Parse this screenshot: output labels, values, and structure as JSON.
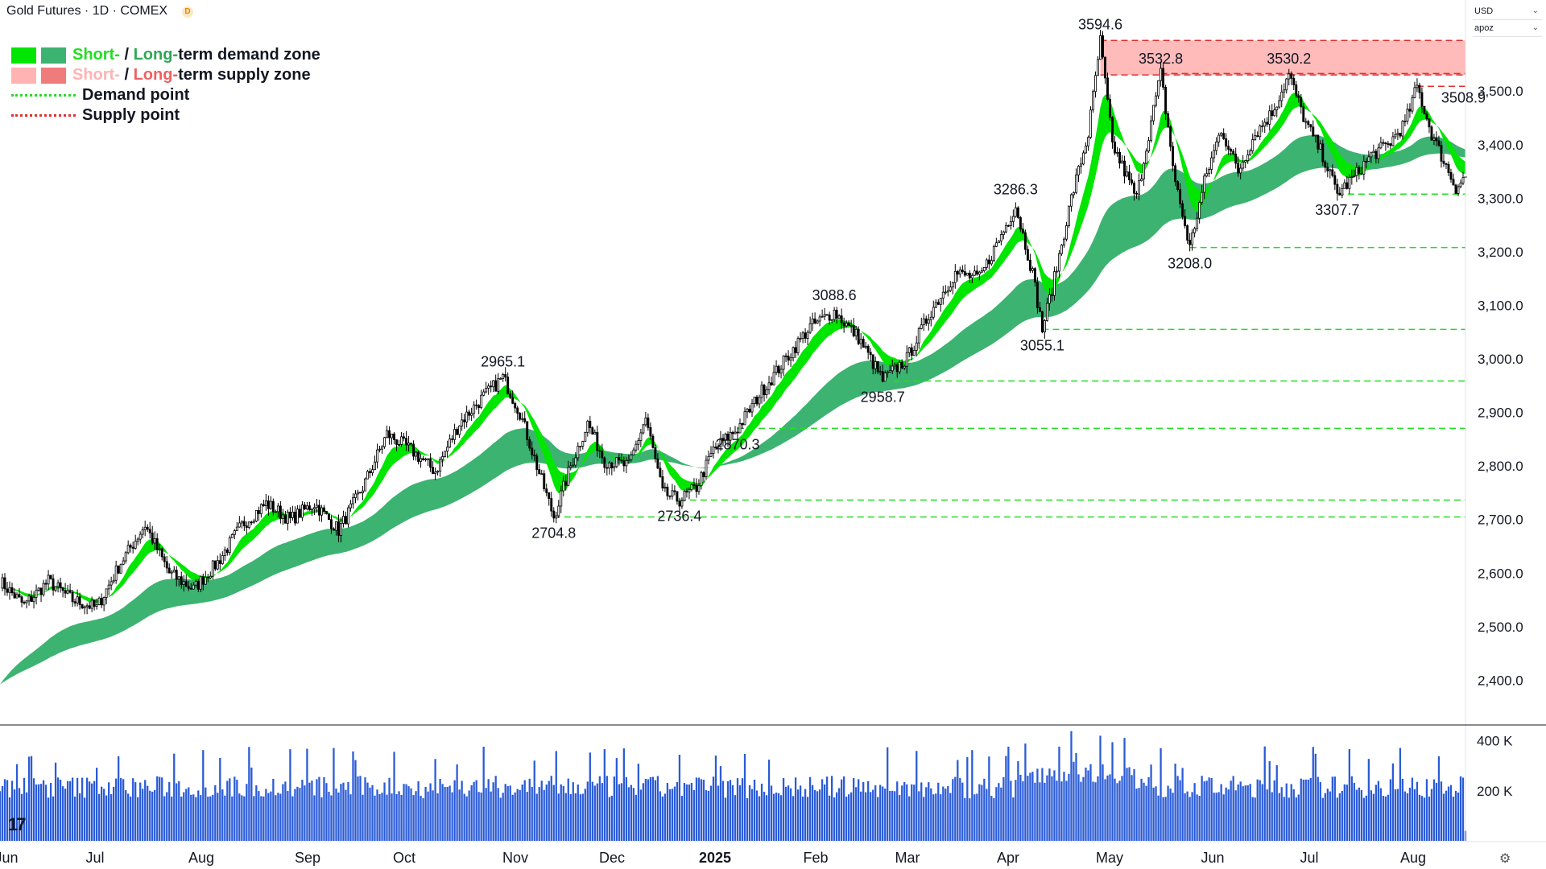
{
  "header": {
    "title": "Gold Futures · 1D · COMEX",
    "badge": "D"
  },
  "scale_panel": {
    "currency": "USD",
    "unit": "apoz"
  },
  "legend": [
    {
      "label_short": "Short-",
      "label_sep": " / ",
      "label_long": "Long-",
      "label_rest": "term demand zone",
      "short_color": "#00e600",
      "long_color": "#3cb371",
      "short_text_color": "#22dd22",
      "long_text_color": "#2ea855"
    },
    {
      "label_short": "Short-",
      "label_sep": " / ",
      "label_long": "Long-",
      "label_rest": "term supply zone",
      "short_color": "#ffb3b3",
      "long_color": "#f07b7b",
      "short_text_color": "#ffb3b3",
      "long_text_color": "#f06060"
    },
    {
      "label": "Demand point",
      "dash_color": "#22dd22"
    },
    {
      "label": "Supply point",
      "dash_color": "#e03030"
    }
  ],
  "chart_data": {
    "type": "candlestick",
    "symbol": "Gold Futures",
    "interval": "1D",
    "exchange": "COMEX",
    "y_axis": {
      "range": [
        2330,
        3610
      ],
      "ticks": [
        "2,400.0",
        "2,500.0",
        "2,600.0",
        "2,700.0",
        "2,800.0",
        "2,900.0",
        "3,000.0",
        "3,100.0",
        "3,200.0",
        "3,300.0",
        "3,400.0",
        "3,500.0"
      ],
      "tick_values": [
        2400,
        2500,
        2600,
        2700,
        2800,
        2900,
        3000,
        3100,
        3200,
        3300,
        3400,
        3500
      ]
    },
    "x_axis": {
      "labels": [
        "Jun",
        "Jul",
        "Aug",
        "Sep",
        "Oct",
        "Nov",
        "Dec",
        "2025",
        "Feb",
        "Mar",
        "Apr",
        "May",
        "Jun",
        "Jul",
        "Aug"
      ],
      "bold": [
        "2025"
      ]
    },
    "price_path": [
      [
        0,
        2585
      ],
      [
        10,
        2540
      ],
      [
        20,
        2585
      ],
      [
        30,
        2550
      ],
      [
        40,
        2535
      ],
      [
        50,
        2620
      ],
      [
        60,
        2690
      ],
      [
        70,
        2600
      ],
      [
        80,
        2570
      ],
      [
        90,
        2620
      ],
      [
        100,
        2690
      ],
      [
        110,
        2730
      ],
      [
        120,
        2700
      ],
      [
        130,
        2730
      ],
      [
        140,
        2680
      ],
      [
        150,
        2760
      ],
      [
        160,
        2860
      ],
      [
        170,
        2830
      ],
      [
        180,
        2790
      ],
      [
        190,
        2880
      ],
      [
        200,
        2930
      ],
      [
        208,
        2965
      ],
      [
        215,
        2900
      ],
      [
        222,
        2800
      ],
      [
        229,
        2705
      ],
      [
        236,
        2800
      ],
      [
        243,
        2880
      ],
      [
        250,
        2810
      ],
      [
        260,
        2800
      ],
      [
        267,
        2890
      ],
      [
        274,
        2750
      ],
      [
        281,
        2736
      ],
      [
        288,
        2760
      ],
      [
        295,
        2830
      ],
      [
        305,
        2870
      ],
      [
        315,
        2940
      ],
      [
        325,
        3000
      ],
      [
        335,
        3060
      ],
      [
        345,
        3088
      ],
      [
        355,
        3040
      ],
      [
        365,
        2960
      ],
      [
        375,
        3000
      ],
      [
        385,
        3090
      ],
      [
        395,
        3160
      ],
      [
        405,
        3150
      ],
      [
        415,
        3240
      ],
      [
        420,
        3286
      ],
      [
        427,
        3160
      ],
      [
        431,
        3055
      ],
      [
        436,
        3150
      ],
      [
        443,
        3300
      ],
      [
        450,
        3420
      ],
      [
        455,
        3594
      ],
      [
        460,
        3400
      ],
      [
        465,
        3350
      ],
      [
        470,
        3300
      ],
      [
        475,
        3420
      ],
      [
        480,
        3533
      ],
      [
        486,
        3330
      ],
      [
        492,
        3208
      ],
      [
        498,
        3330
      ],
      [
        505,
        3430
      ],
      [
        512,
        3350
      ],
      [
        519,
        3420
      ],
      [
        526,
        3460
      ],
      [
        533,
        3530
      ],
      [
        540,
        3440
      ],
      [
        547,
        3380
      ],
      [
        553,
        3308
      ],
      [
        560,
        3340
      ],
      [
        567,
        3380
      ],
      [
        574,
        3400
      ],
      [
        581,
        3440
      ],
      [
        586,
        3509
      ],
      [
        592,
        3420
      ],
      [
        597,
        3370
      ],
      [
        602,
        3320
      ],
      [
        606,
        3340
      ]
    ],
    "candles_per_axis": 606,
    "annotations": [
      {
        "text": "3594.6",
        "value": 3594.6,
        "kind": "high"
      },
      {
        "text": "3532.8",
        "value": 3532.8,
        "kind": "high"
      },
      {
        "text": "3530.2",
        "value": 3530.2,
        "kind": "high"
      },
      {
        "text": "3508.9",
        "value": 3508.9,
        "kind": "high"
      },
      {
        "text": "3307.7",
        "value": 3307.7,
        "kind": "low"
      },
      {
        "text": "3286.3",
        "value": 3286.3,
        "kind": "high"
      },
      {
        "text": "3208.0",
        "value": 3208.0,
        "kind": "low"
      },
      {
        "text": "3088.6",
        "value": 3088.6,
        "kind": "high"
      },
      {
        "text": "3055.1",
        "value": 3055.1,
        "kind": "low"
      },
      {
        "text": "2965.1",
        "value": 2965.1,
        "kind": "high"
      },
      {
        "text": "2958.7",
        "value": 2958.7,
        "kind": "low"
      },
      {
        "text": "2870.3",
        "value": 2870.3,
        "kind": "low"
      },
      {
        "text": "2736.4",
        "value": 2736.4,
        "kind": "low"
      },
      {
        "text": "2704.8",
        "value": 2704.8,
        "kind": "low"
      }
    ],
    "demand_points": [
      3307.7,
      3208.0,
      3055.1,
      2958.7,
      2870.3,
      2736.4,
      2704.8
    ],
    "supply_points": [
      3532.8,
      3508.9
    ],
    "supply_zone": {
      "high": 3594.6,
      "low": 3530.2
    },
    "volume": {
      "ticks": [
        "400 K",
        "200 K"
      ],
      "tick_values": [
        400000,
        200000
      ],
      "range_max": 450000
    }
  }
}
